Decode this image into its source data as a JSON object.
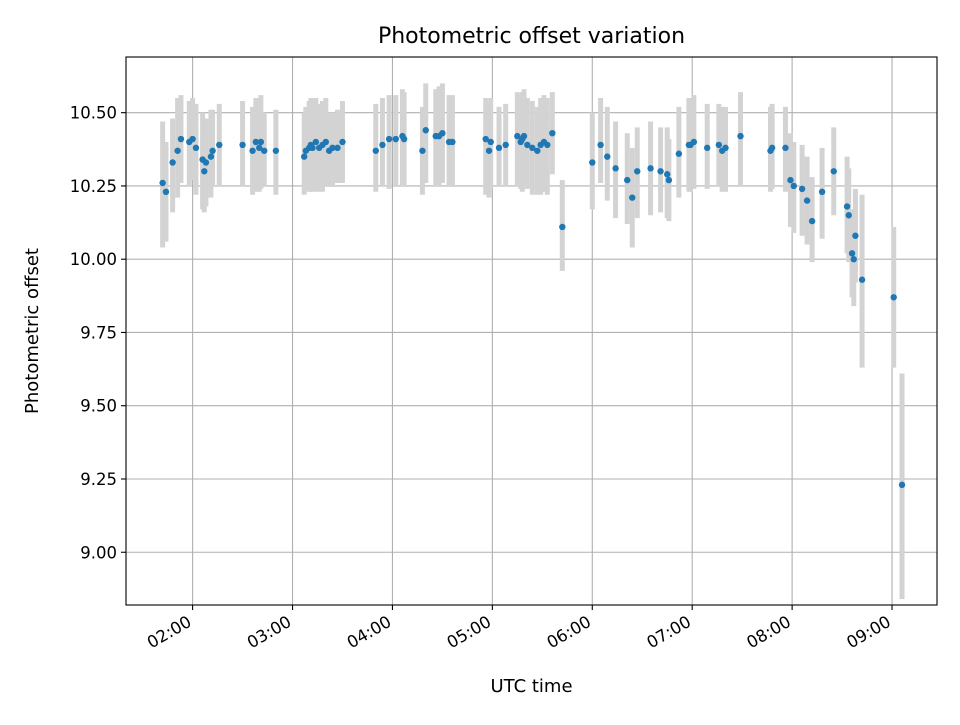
{
  "chart_data": {
    "type": "scatter",
    "title": "Photometric offset variation",
    "xlabel": "UTC time",
    "ylabel": "Photometric offset",
    "xlim": [
      "01:20",
      "09:27"
    ],
    "ylim": [
      8.82,
      10.69
    ],
    "grid": true,
    "legend": "none",
    "x_ticks": [
      "02:00",
      "03:00",
      "04:00",
      "05:00",
      "06:00",
      "07:00",
      "08:00",
      "09:00"
    ],
    "y_ticks": [
      "9.00",
      "9.25",
      "9.50",
      "9.75",
      "10.00",
      "10.25",
      "10.50"
    ],
    "series": [
      {
        "marker_color": "#1f77b4",
        "errorbar_color": "#d3d3d3",
        "x": [
          "01:42",
          "01:44",
          "01:48",
          "01:51",
          "01:53",
          "01:58",
          "02:00",
          "02:02",
          "02:06",
          "02:07",
          "02:08",
          "02:11",
          "02:12",
          "02:16",
          "02:30",
          "02:36",
          "02:38",
          "02:40",
          "02:41",
          "02:43",
          "02:50",
          "03:07",
          "03:08",
          "03:10",
          "03:11",
          "03:12",
          "03:14",
          "03:16",
          "03:18",
          "03:20",
          "03:22",
          "03:24",
          "03:27",
          "03:30",
          "03:50",
          "03:54",
          "03:58",
          "04:02",
          "04:06",
          "04:07",
          "04:18",
          "04:20",
          "04:26",
          "04:28",
          "04:30",
          "04:34",
          "04:36",
          "04:56",
          "04:58",
          "04:59",
          "05:04",
          "05:08",
          "05:15",
          "05:17",
          "05:18",
          "05:19",
          "05:21",
          "05:24",
          "05:27",
          "05:29",
          "05:31",
          "05:33",
          "05:36",
          "05:42",
          "06:00",
          "06:05",
          "06:09",
          "06:14",
          "06:21",
          "06:24",
          "06:27",
          "06:35",
          "06:41",
          "06:45",
          "06:46",
          "06:52",
          "06:58",
          "06:59",
          "07:01",
          "07:09",
          "07:16",
          "07:18",
          "07:20",
          "07:29",
          "07:47",
          "07:48",
          "07:56",
          "07:59",
          "08:01",
          "08:06",
          "08:09",
          "08:12",
          "08:18",
          "08:25",
          "08:33",
          "08:34",
          "08:36",
          "08:37",
          "08:38",
          "08:42",
          "09:01",
          "09:06"
        ],
        "y": [
          10.26,
          10.23,
          10.33,
          10.37,
          10.41,
          10.4,
          10.41,
          10.38,
          10.34,
          10.3,
          10.33,
          10.35,
          10.37,
          10.39,
          10.39,
          10.37,
          10.4,
          10.38,
          10.4,
          10.37,
          10.37,
          10.35,
          10.37,
          10.38,
          10.39,
          10.38,
          10.4,
          10.38,
          10.39,
          10.4,
          10.37,
          10.38,
          10.38,
          10.4,
          10.37,
          10.39,
          10.41,
          10.41,
          10.42,
          10.41,
          10.37,
          10.44,
          10.42,
          10.42,
          10.43,
          10.4,
          10.4,
          10.41,
          10.37,
          10.4,
          10.38,
          10.39,
          10.42,
          10.4,
          10.41,
          10.42,
          10.39,
          10.38,
          10.37,
          10.39,
          10.4,
          10.39,
          10.43,
          10.11,
          10.33,
          10.39,
          10.35,
          10.31,
          10.27,
          10.21,
          10.3,
          10.31,
          10.3,
          10.29,
          10.27,
          10.36,
          10.39,
          10.39,
          10.4,
          10.38,
          10.39,
          10.37,
          10.38,
          10.42,
          10.37,
          10.38,
          10.38,
          10.27,
          10.25,
          10.24,
          10.2,
          10.13,
          10.23,
          10.3,
          10.18,
          10.15,
          10.02,
          10.0,
          10.08,
          9.93,
          9.87,
          9.23
        ],
        "yerr_lower": [
          10.04,
          10.06,
          10.16,
          10.21,
          10.26,
          10.25,
          10.27,
          10.22,
          10.17,
          10.16,
          10.18,
          10.21,
          10.25,
          10.25,
          10.25,
          10.22,
          10.23,
          10.23,
          10.24,
          10.25,
          10.22,
          10.22,
          10.24,
          10.23,
          10.23,
          10.23,
          10.23,
          10.23,
          10.23,
          10.25,
          10.25,
          10.25,
          10.26,
          10.26,
          10.23,
          10.25,
          10.24,
          10.25,
          10.25,
          10.25,
          10.22,
          10.26,
          10.25,
          10.25,
          10.26,
          10.25,
          10.25,
          10.22,
          10.21,
          10.24,
          10.25,
          10.25,
          10.25,
          10.24,
          10.23,
          10.25,
          10.24,
          10.22,
          10.22,
          10.22,
          10.23,
          10.22,
          10.29,
          9.96,
          10.17,
          10.26,
          10.2,
          10.14,
          10.12,
          10.04,
          10.14,
          10.15,
          10.16,
          10.14,
          10.13,
          10.21,
          10.23,
          10.23,
          10.24,
          10.24,
          10.25,
          10.23,
          10.23,
          10.25,
          10.23,
          10.24,
          10.23,
          10.11,
          10.09,
          10.08,
          10.05,
          9.99,
          10.07,
          10.15,
          10.02,
          9.99,
          9.87,
          9.84,
          9.92,
          9.63,
          9.63,
          8.84
        ],
        "yerr_upper": [
          10.47,
          10.4,
          10.48,
          10.55,
          10.56,
          10.54,
          10.55,
          10.53,
          10.5,
          10.44,
          10.48,
          10.51,
          10.51,
          10.53,
          10.54,
          10.52,
          10.55,
          10.54,
          10.56,
          10.5,
          10.51,
          10.5,
          10.52,
          10.54,
          10.55,
          10.54,
          10.55,
          10.53,
          10.54,
          10.55,
          10.5,
          10.5,
          10.51,
          10.54,
          10.53,
          10.55,
          10.56,
          10.56,
          10.58,
          10.57,
          10.52,
          10.6,
          10.58,
          10.59,
          10.6,
          10.56,
          10.56,
          10.55,
          10.53,
          10.55,
          10.52,
          10.53,
          10.57,
          10.56,
          10.57,
          10.58,
          10.55,
          10.54,
          10.52,
          10.55,
          10.56,
          10.55,
          10.57,
          10.27,
          10.5,
          10.55,
          10.52,
          10.47,
          10.43,
          10.38,
          10.45,
          10.47,
          10.45,
          10.45,
          10.41,
          10.52,
          10.55,
          10.55,
          10.56,
          10.53,
          10.53,
          10.52,
          10.52,
          10.57,
          10.52,
          10.53,
          10.52,
          10.43,
          10.4,
          10.39,
          10.35,
          10.28,
          10.38,
          10.45,
          10.35,
          10.31,
          10.17,
          10.16,
          10.24,
          10.22,
          10.11,
          9.61
        ]
      }
    ]
  }
}
